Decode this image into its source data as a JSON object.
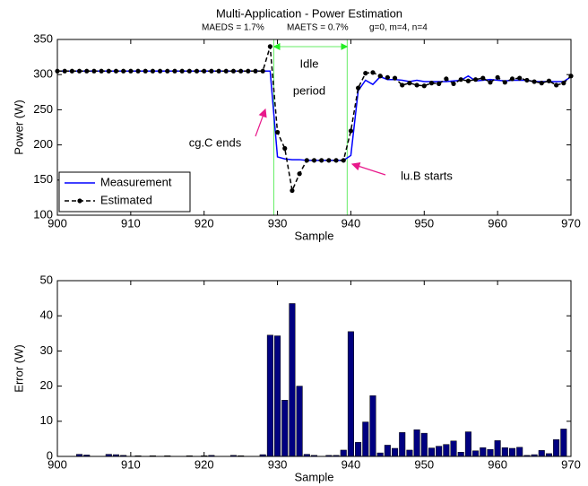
{
  "chart_data": [
    {
      "type": "line",
      "title": "Multi-Application - Power Estimation",
      "subtitle": [
        "MAEDS = 1.7%",
        "MAETS = 0.7%",
        "g=0, m=4, n=4"
      ],
      "x_label": "Sample",
      "y_label": "Power (W)",
      "x": [
        900,
        901,
        902,
        903,
        904,
        905,
        906,
        907,
        908,
        909,
        910,
        911,
        912,
        913,
        914,
        915,
        916,
        917,
        918,
        919,
        920,
        921,
        922,
        923,
        924,
        925,
        926,
        927,
        928,
        929,
        930,
        931,
        932,
        933,
        934,
        935,
        936,
        937,
        938,
        939,
        940,
        941,
        942,
        943,
        944,
        945,
        946,
        947,
        948,
        949,
        950,
        951,
        952,
        953,
        954,
        955,
        956,
        957,
        958,
        959,
        960,
        961,
        962,
        963,
        964,
        965,
        966,
        967,
        968,
        969,
        970
      ],
      "series": [
        {
          "name": "Measurement",
          "color": "#0000ff",
          "style": "solid",
          "marker": false,
          "values": [
            305,
            305,
            305,
            305,
            305,
            305,
            305,
            305,
            305,
            305,
            305,
            305,
            305,
            305,
            305,
            305,
            305,
            305,
            305,
            305,
            305,
            305,
            305,
            305,
            305,
            305,
            305,
            305,
            305,
            305,
            183,
            180,
            179,
            179,
            178,
            178,
            178,
            178,
            178,
            178,
            185,
            277,
            292,
            286,
            297,
            293,
            293,
            292,
            290,
            292,
            290,
            290,
            290,
            290,
            291,
            292,
            298,
            291,
            292,
            293,
            292,
            291,
            292,
            292,
            292,
            290,
            290,
            290,
            290,
            290,
            297
          ]
        },
        {
          "name": "Estimated",
          "color": "#000000",
          "style": "dashed",
          "marker": true,
          "values": [
            305,
            305,
            305,
            305,
            305,
            305,
            305,
            305,
            305,
            305,
            305,
            305,
            305,
            305,
            305,
            305,
            305,
            305,
            305,
            305,
            305,
            305,
            305,
            305,
            305,
            305,
            305,
            305,
            305,
            340,
            218,
            195,
            135,
            159,
            178,
            178,
            178,
            178,
            178,
            178,
            220,
            281,
            302,
            303,
            298,
            296,
            295,
            285,
            288,
            285,
            284,
            288,
            287,
            294,
            287,
            293,
            291,
            293,
            295,
            289,
            296,
            289,
            294,
            295,
            292,
            290,
            288,
            291,
            285,
            288,
            298
          ]
        }
      ],
      "xlim": [
        900,
        970
      ],
      "xticks": [
        900,
        910,
        920,
        930,
        940,
        950,
        960,
        970
      ],
      "ylim": [
        100,
        350
      ],
      "yticks": [
        100,
        150,
        200,
        250,
        300,
        350
      ],
      "legend": "lower left",
      "vspan": {
        "x": [
          929.5,
          939.5
        ],
        "color": "#66ee66"
      },
      "annotations": [
        {
          "text": [
            "Idle",
            "period"
          ],
          "color": "#22ee22"
        },
        {
          "text": [
            "cg.C ends"
          ],
          "color": "#e8198b"
        },
        {
          "text": [
            "lu.B starts"
          ],
          "color": "#e8198b"
        }
      ]
    },
    {
      "type": "bar",
      "x_label": "Sample",
      "y_label": "Error (W)",
      "color": "#000080",
      "x": [
        900,
        901,
        902,
        903,
        904,
        905,
        906,
        907,
        908,
        909,
        910,
        911,
        912,
        913,
        914,
        915,
        916,
        917,
        918,
        919,
        920,
        921,
        922,
        923,
        924,
        925,
        926,
        927,
        928,
        929,
        930,
        931,
        932,
        933,
        934,
        935,
        936,
        937,
        938,
        939,
        940,
        941,
        942,
        943,
        944,
        945,
        946,
        947,
        948,
        949,
        950,
        951,
        952,
        953,
        954,
        955,
        956,
        957,
        958,
        959,
        960,
        961,
        962,
        963,
        964,
        965,
        966,
        967,
        968,
        969,
        970
      ],
      "values": [
        0,
        0,
        0,
        0.6,
        0.4,
        0,
        0,
        0.6,
        0.5,
        0.3,
        0,
        0.2,
        0,
        0.2,
        0,
        0.2,
        0,
        0,
        0.2,
        0,
        0.2,
        0.3,
        0,
        0,
        0.3,
        0.2,
        0,
        0,
        0.5,
        34.5,
        34.3,
        16,
        43.5,
        20,
        0.6,
        0.3,
        0,
        0.3,
        0.3,
        1.8,
        35.5,
        4,
        9.8,
        17.3,
        1,
        3.2,
        2.3,
        6.8,
        1.8,
        7.6,
        6.6,
        2.4,
        2.9,
        3.4,
        4.4,
        1.2,
        7,
        1.6,
        2.5,
        2,
        4.5,
        2.5,
        2.3,
        2.6,
        0.3,
        0.5,
        1.7,
        0.8,
        4.8,
        7.8,
        0
      ],
      "xlim": [
        900,
        970
      ],
      "xticks": [
        900,
        910,
        920,
        930,
        940,
        950,
        960,
        970
      ],
      "ylim": [
        0,
        50
      ],
      "yticks": [
        0,
        10,
        20,
        30,
        40,
        50
      ]
    }
  ]
}
